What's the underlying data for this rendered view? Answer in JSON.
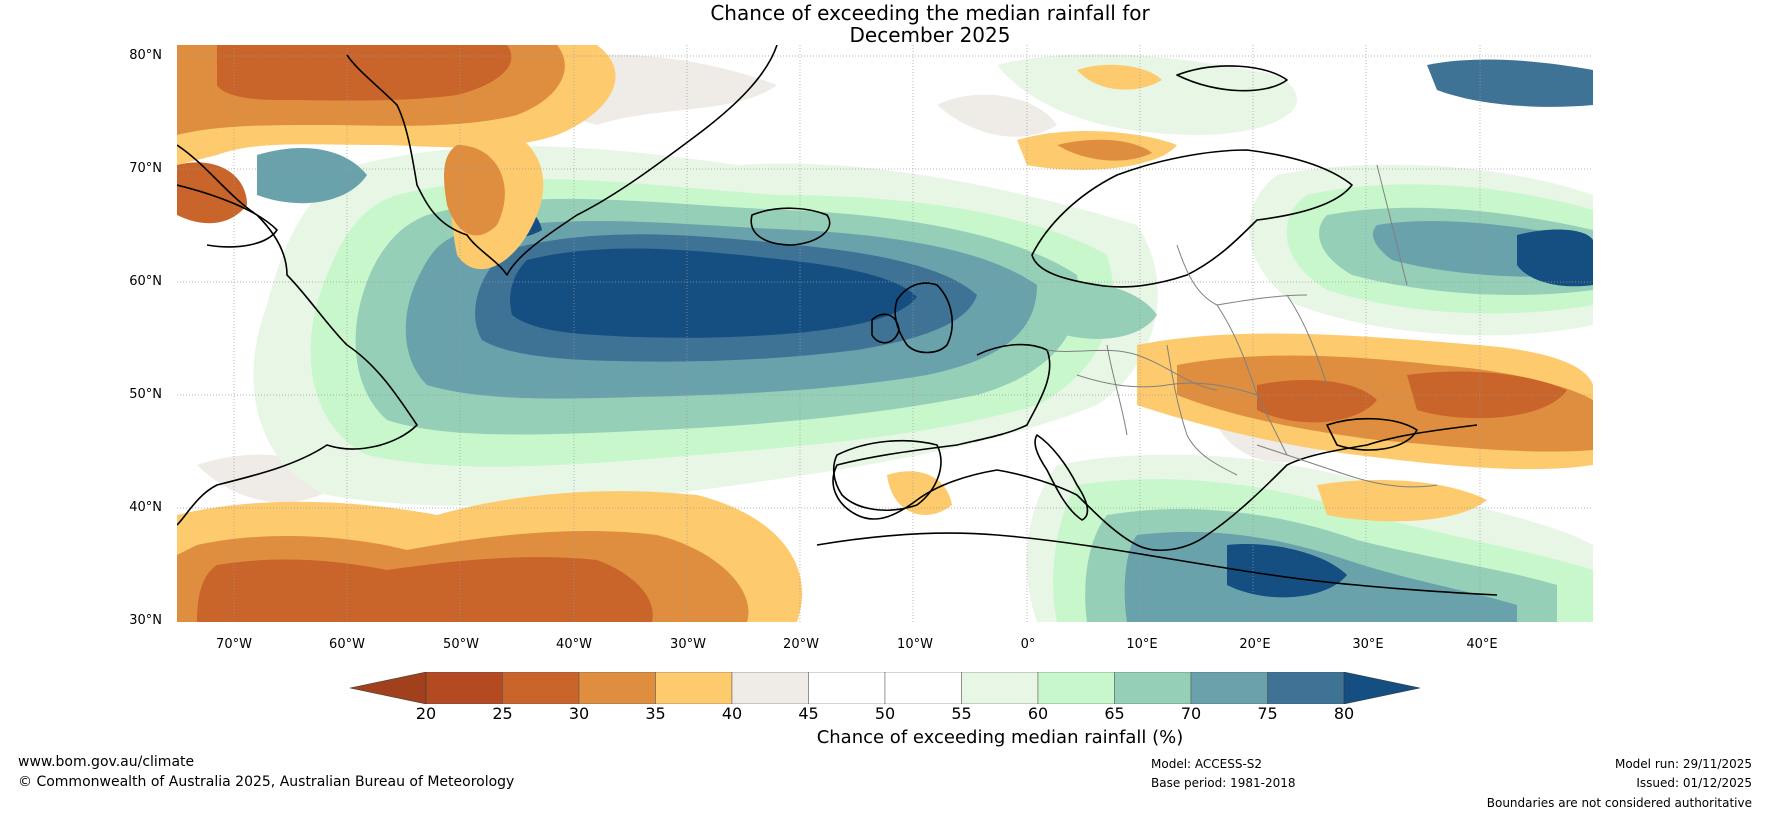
{
  "title": {
    "line1": "Chance of exceeding the median rainfall for",
    "line2": "December 2025"
  },
  "map": {
    "lat_labels": [
      "80°N",
      "70°N",
      "60°N",
      "50°N",
      "40°N",
      "30°N"
    ],
    "lon_labels": [
      "70°W",
      "60°W",
      "50°W",
      "40°W",
      "30°W",
      "20°W",
      "10°W",
      "0°",
      "10°E",
      "20°E",
      "30°E",
      "40°E"
    ],
    "extent": {
      "lon_min": -75,
      "lon_max": 50,
      "lat_min": 30,
      "lat_max": 81
    }
  },
  "colorbar": {
    "label": "Chance of exceeding median rainfall (%)",
    "ticks": [
      "20",
      "25",
      "30",
      "35",
      "40",
      "45",
      "50",
      "55",
      "60",
      "65",
      "70",
      "75",
      "80"
    ],
    "colors": {
      "under": "#a0401c",
      "bins": [
        "#b34a22",
        "#c9642a",
        "#df8e3f",
        "#fdcb6e",
        "#efebe7",
        "#ffffff",
        "#ffffff",
        "#e8f6e6",
        "#c8f7cc",
        "#96cfb8",
        "#6aa2ac",
        "#3e7396"
      ],
      "over": "#154f82"
    }
  },
  "footer": {
    "website": "www.bom.gov.au/climate",
    "copyright": "© Commonwealth of Australia 2025, Australian Bureau of Meteorology",
    "model": "Model: ACCESS-S2",
    "base_period": "Base period: 1981-2018",
    "model_run": "Model run: 29/11/2025",
    "issued": "Issued: 01/12/2025",
    "disclaimer": "Boundaries are not considered authoritative"
  }
}
